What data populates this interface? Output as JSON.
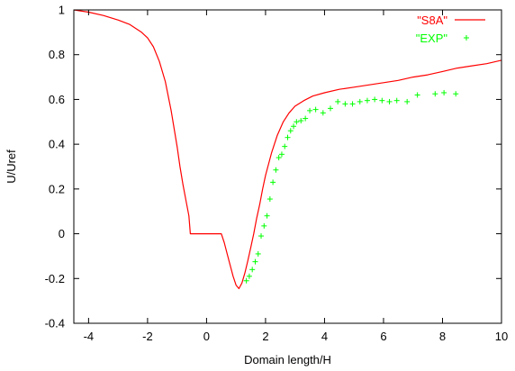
{
  "chart_data": {
    "type": "line",
    "xlabel": "Domain length/H",
    "ylabel": "U/Uref",
    "xlim": [
      -4.5,
      10
    ],
    "ylim": [
      -0.4,
      1
    ],
    "xticks": [
      -4,
      -2,
      0,
      2,
      4,
      6,
      8,
      10
    ],
    "yticks": [
      -0.4,
      -0.2,
      0,
      0.2,
      0.4,
      0.6,
      0.8,
      1
    ],
    "grid": false,
    "legend_position": "top-right",
    "series": [
      {
        "name": "\"S8A\"",
        "style": "line",
        "color": "#ff0000",
        "x": [
          -4.5,
          -4.0,
          -3.5,
          -3.0,
          -2.6,
          -2.2,
          -2.0,
          -1.8,
          -1.6,
          -1.4,
          -1.2,
          -1.0,
          -0.9,
          -0.8,
          -0.7,
          -0.6,
          -0.55,
          0.5,
          0.6,
          0.7,
          0.8,
          0.9,
          1.0,
          1.1,
          1.2,
          1.3,
          1.4,
          1.5,
          1.6,
          1.7,
          1.8,
          1.9,
          2.0,
          2.2,
          2.4,
          2.6,
          2.8,
          3.0,
          3.3,
          3.6,
          4.0,
          4.5,
          5.0,
          5.5,
          6.0,
          6.5,
          7.0,
          7.5,
          8.0,
          8.5,
          9.0,
          9.5,
          10.0
        ],
        "y": [
          1.0,
          0.99,
          0.975,
          0.955,
          0.935,
          0.9,
          0.875,
          0.835,
          0.77,
          0.68,
          0.55,
          0.39,
          0.3,
          0.22,
          0.15,
          0.08,
          0.0,
          0.0,
          -0.04,
          -0.09,
          -0.14,
          -0.19,
          -0.23,
          -0.245,
          -0.22,
          -0.175,
          -0.12,
          -0.06,
          0.0,
          0.07,
          0.13,
          0.2,
          0.26,
          0.36,
          0.44,
          0.5,
          0.54,
          0.57,
          0.595,
          0.615,
          0.63,
          0.645,
          0.655,
          0.665,
          0.675,
          0.685,
          0.7,
          0.71,
          0.725,
          0.74,
          0.75,
          0.76,
          0.775
        ]
      },
      {
        "name": "\"EXP\"",
        "style": "points",
        "marker": "+",
        "color": "#00ff00",
        "x": [
          1.35,
          1.45,
          1.55,
          1.65,
          1.75,
          1.85,
          1.95,
          2.05,
          2.15,
          2.25,
          2.35,
          2.45,
          2.55,
          2.65,
          2.75,
          2.85,
          2.95,
          3.05,
          3.2,
          3.35,
          3.5,
          3.7,
          3.95,
          4.2,
          4.45,
          4.7,
          4.95,
          5.2,
          5.45,
          5.7,
          5.95,
          6.2,
          6.45,
          6.8,
          7.15,
          7.75,
          8.05,
          8.45
        ],
        "y": [
          -0.21,
          -0.19,
          -0.16,
          -0.125,
          -0.09,
          -0.01,
          0.035,
          0.08,
          0.155,
          0.23,
          0.285,
          0.34,
          0.355,
          0.39,
          0.43,
          0.46,
          0.48,
          0.5,
          0.505,
          0.515,
          0.55,
          0.555,
          0.54,
          0.56,
          0.59,
          0.58,
          0.58,
          0.59,
          0.595,
          0.6,
          0.595,
          0.59,
          0.595,
          0.59,
          0.62,
          0.625,
          0.63,
          0.625
        ]
      }
    ]
  }
}
